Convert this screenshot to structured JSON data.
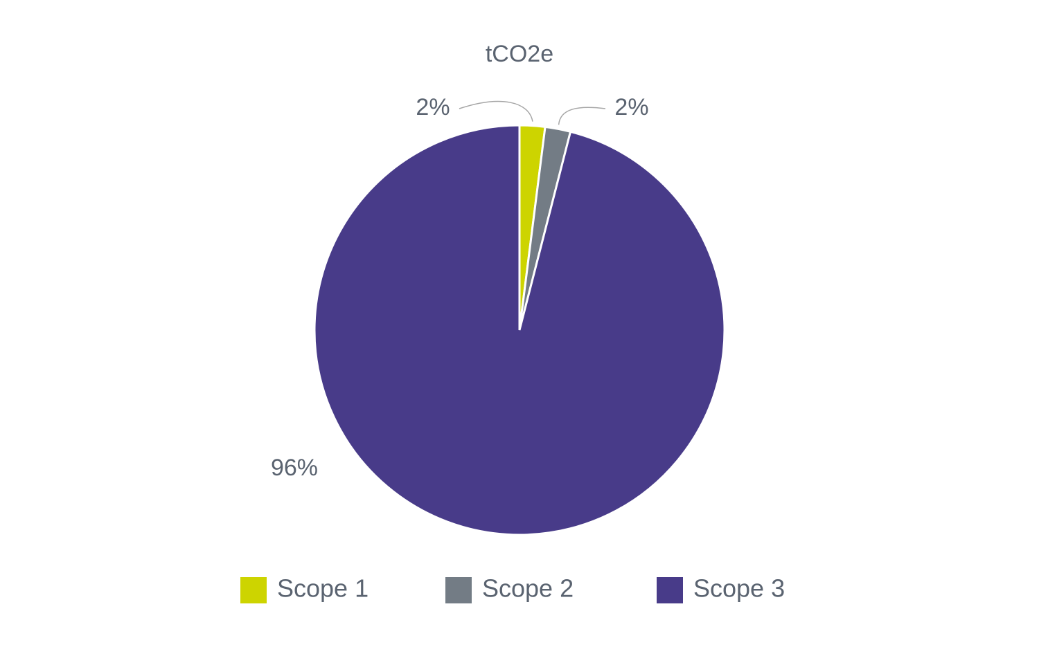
{
  "chart_data": {
    "type": "pie",
    "title": "tCO2e",
    "categories": [
      "Scope 1",
      "Scope 2",
      "Scope 3"
    ],
    "values": [
      2,
      2,
      96
    ],
    "value_labels": [
      "2%",
      "2%",
      "96%"
    ],
    "colors": [
      "#cdd400",
      "#737c85",
      "#483b89"
    ],
    "legend": "bottom"
  }
}
